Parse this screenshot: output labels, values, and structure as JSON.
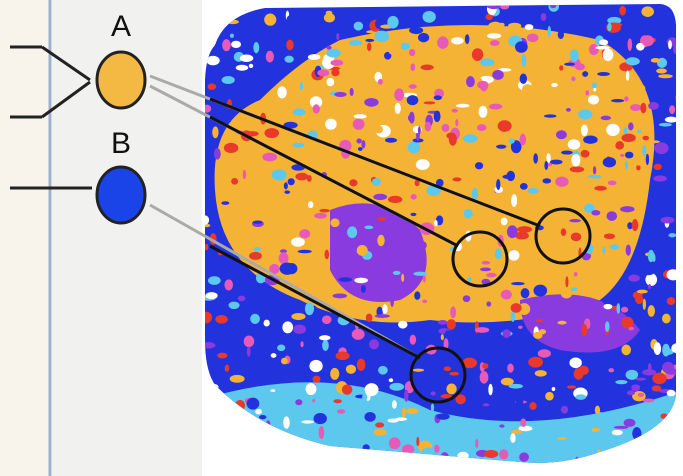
{
  "nodes": [
    {
      "label": "A"
    },
    {
      "label": "B"
    }
  ]
}
